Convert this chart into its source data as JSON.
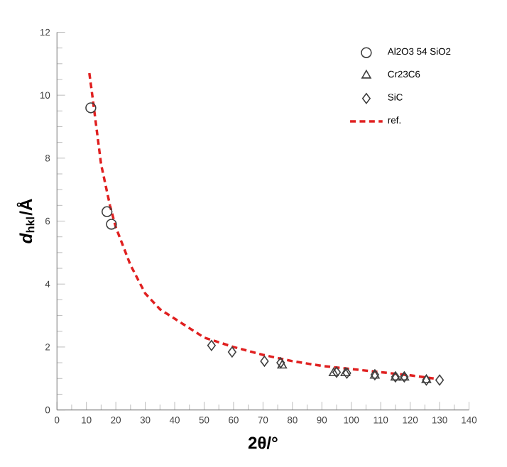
{
  "chart_data": {
    "type": "scatter",
    "xlabel": "2θ/°",
    "ylabel": "*d*$_{hkl}$/Å",
    "xlim": [
      0,
      140
    ],
    "xticks": [
      0,
      10,
      20,
      30,
      40,
      50,
      60,
      70,
      80,
      90,
      100,
      110,
      120,
      130,
      140
    ],
    "ylim": [
      0,
      12
    ],
    "yticks": [
      0,
      2,
      4,
      6,
      8,
      10,
      12
    ],
    "legend": "top right",
    "grid": false,
    "series": [
      {
        "name": "Al2O3 54 SiO2",
        "color": "#404040",
        "marker": "circle",
        "x": [
          11.5,
          17,
          18.5
        ],
        "values": [
          9.6,
          6.3,
          5.9
        ]
      },
      {
        "name": "Cr23C6",
        "color": "#404040",
        "marker": "triangle",
        "x": [
          76.5,
          94,
          98,
          108,
          115,
          118,
          125.5
        ],
        "values": [
          1.41,
          1.17,
          1.17,
          1.09,
          1.03,
          1.03,
          0.95
        ]
      },
      {
        "name": "SiC",
        "color": "#404040",
        "marker": "diamond",
        "x": [
          52.5,
          59.5,
          70.5,
          76,
          95,
          98.5,
          108,
          115,
          118,
          125.5,
          130
        ],
        "values": [
          2.05,
          1.84,
          1.55,
          1.5,
          1.2,
          1.17,
          1.12,
          1.05,
          1.05,
          0.95,
          0.95
        ]
      },
      {
        "name": "ref.",
        "type": "line",
        "color": "#e02020",
        "marker": "none",
        "line_style": "dashed",
        "x": [
          11,
          12,
          15,
          18,
          20,
          25,
          30,
          35,
          40,
          50,
          60,
          70,
          80,
          90,
          100,
          110,
          120,
          128
        ],
        "values": [
          10.7,
          10,
          7.8,
          6.5,
          5.8,
          4.6,
          3.7,
          3.2,
          2.9,
          2.3,
          2.0,
          1.75,
          1.55,
          1.4,
          1.3,
          1.2,
          1.1,
          1.0
        ]
      }
    ]
  }
}
